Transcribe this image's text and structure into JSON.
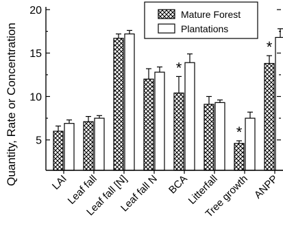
{
  "chart_data": {
    "type": "bar",
    "title": "",
    "xlabel": "",
    "ylabel": "Quantity, Rate or Concentration",
    "ylim": [
      1.5,
      20
    ],
    "yticks": [
      5,
      10,
      15,
      20
    ],
    "categories": [
      "LAI",
      "Leaf fall",
      "Leaf fall [N]",
      "Leaf fall N",
      "BCA",
      "Litterfall",
      "Tree growth",
      "ANPP"
    ],
    "series": [
      {
        "name": "Mature Forest",
        "pattern": "crosshatch",
        "values": [
          6.0,
          7.1,
          16.7,
          12.0,
          10.4,
          9.1,
          4.6,
          13.8
        ],
        "errors": [
          0.6,
          0.6,
          0.5,
          1.2,
          1.9,
          0.9,
          0.3,
          0.9
        ]
      },
      {
        "name": "Plantations",
        "pattern": "white",
        "values": [
          6.9,
          7.5,
          17.2,
          12.8,
          13.9,
          9.3,
          7.5,
          16.8
        ],
        "errors": [
          0.4,
          0.3,
          0.4,
          0.6,
          1.0,
          0.3,
          0.7,
          1.0
        ]
      }
    ],
    "annotations": [
      {
        "category": "BCA",
        "text": "*"
      },
      {
        "category": "Tree growth",
        "text": "*"
      },
      {
        "category": "ANPP",
        "text": "*"
      }
    ],
    "legend": {
      "placement": "top-right",
      "entries": [
        "Mature Forest",
        "Plantations"
      ]
    },
    "grid": false
  }
}
